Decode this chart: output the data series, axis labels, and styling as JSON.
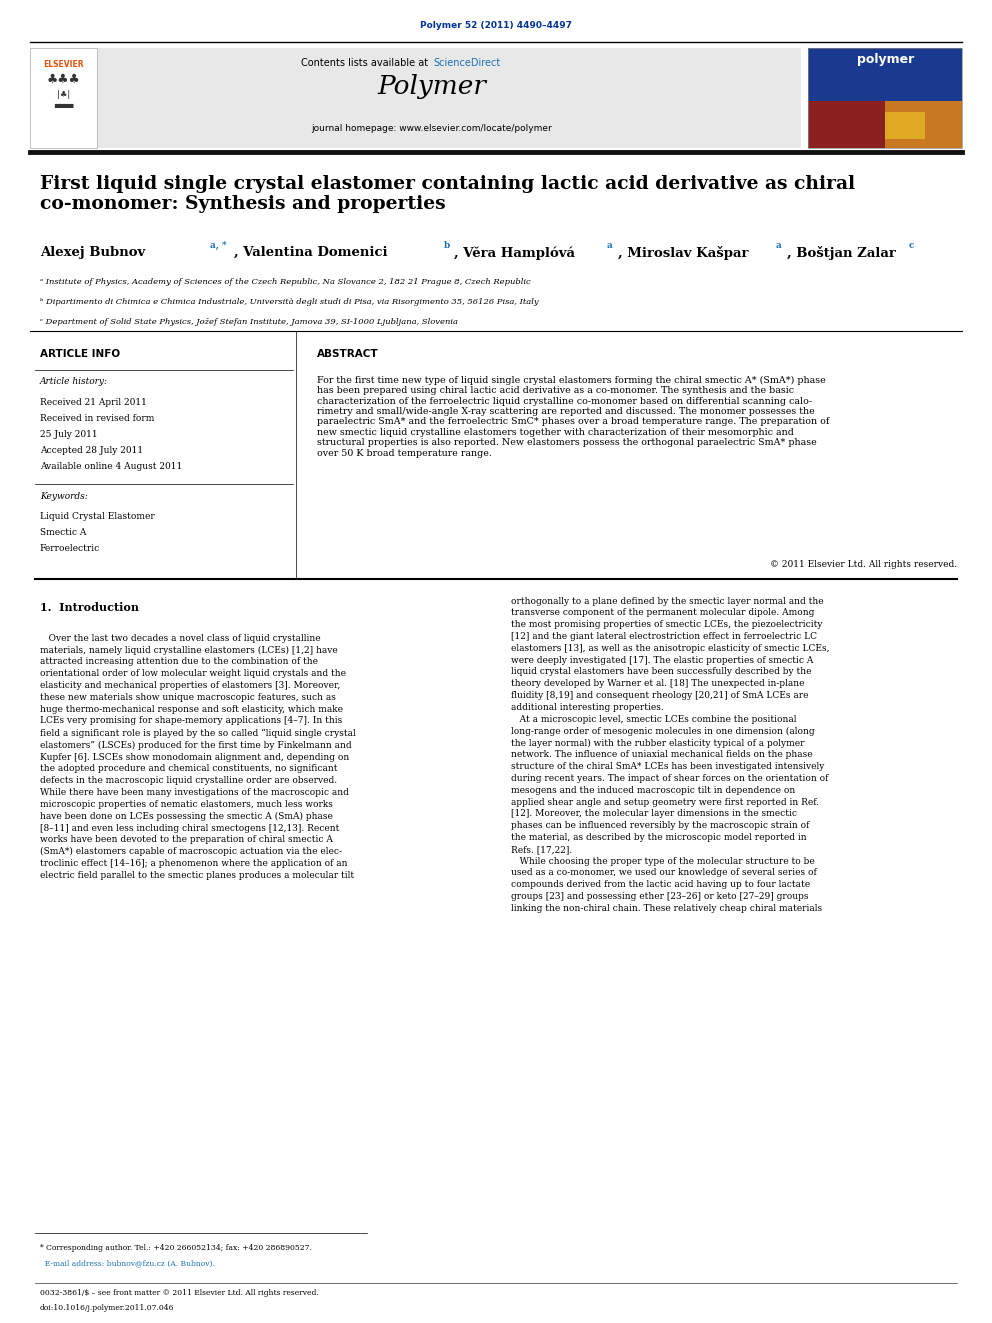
{
  "page_width": 9.92,
  "page_height": 13.23,
  "background_color": "#ffffff",
  "journal_ref": "Polymer 52 (2011) 4490–4497",
  "journal_ref_color": "#003399",
  "header_bg": "#e8e8e8",
  "header_text": "Contents lists available at ",
  "header_journal": "Polymer",
  "header_url": "journal homepage: www.elsevier.com/locate/polymer",
  "sciencedirect_color": "#1a6fb5",
  "title": "First liquid single crystal elastomer containing lactic acid derivative as chiral\nco-monomer: Synthesis and properties",
  "affil_a": "ᵃ Institute of Physics, Academy of Sciences of the Czech Republic, Na Slovance 2, 182 21 Prague 8, Czech Republic",
  "affil_b": "ᵇ Dipartimento di Chimica e Chimica Industriale, Università degli studi di Pisa, via Risorgimento 35, 56126 Pisa, Italy",
  "affil_c": "ᶜ Department of Solid State Physics, Jožef Stefan Institute, Jamova 39, SI-1000 Ljubljana, Slovenia",
  "article_info_title": "ARTICLE INFO",
  "abstract_title": "ABSTRACT",
  "article_history_label": "Article history:",
  "received": "Received 21 April 2011",
  "revised": "Received in revised form",
  "revised2": "25 July 2011",
  "accepted": "Accepted 28 July 2011",
  "online": "Available online 4 August 2011",
  "keywords_label": "Keywords:",
  "keyword1": "Liquid Crystal Elastomer",
  "keyword2": "Smectic A",
  "keyword3": "Ferroelectric",
  "abstract_text": "For the first time new type of liquid single crystal elastomers forming the chiral smectic A* (SmA*) phase\nhas been prepared using chiral lactic acid derivative as a co-monomer. The synthesis and the basic\ncharacterization of the ferroelectric liquid crystalline co-monomer based on differential scanning calo-\nrimetry and small/wide-angle X-ray scattering are reported and discussed. The monomer possesses the\nparaelectric SmA* and the ferroelectric SmC* phases over a broad temperature range. The preparation of\nnew smectic liquid crystalline elastomers together with characterization of their mesomorphic and\nstructural properties is also reported. New elastomers possess the orthogonal paraelectric SmA* phase\nover 50 K broad temperature range.",
  "copyright": "© 2011 Elsevier Ltd. All rights reserved.",
  "intro_title": "1.  Introduction",
  "intro_text_left": "   Over the last two decades a novel class of liquid crystalline\nmaterials, namely liquid crystalline elastomers (LCEs) [1,2] have\nattracted increasing attention due to the combination of the\norientational order of low molecular weight liquid crystals and the\nelasticity and mechanical properties of elastomers [3]. Moreover,\nthese new materials show unique macroscopic features, such as\nhuge thermo-mechanical response and soft elasticity, which make\nLCEs very promising for shape-memory applications [4–7]. In this\nfield a significant role is played by the so called “liquid single crystal\nelastomers” (LSCEs) produced for the first time by Finkelmann and\nKupfer [6]. LSCEs show monodomain alignment and, depending on\nthe adopted procedure and chemical constituents, no significant\ndefects in the macroscopic liquid crystalline order are observed.\nWhile there have been many investigations of the macroscopic and\nmicroscopic properties of nematic elastomers, much less works\nhave been done on LCEs possessing the smectic A (SmA) phase\n[8–11] and even less including chiral smectogens [12,13]. Recent\nworks have been devoted to the preparation of chiral smectic A\n(SmA*) elastomers capable of macroscopic actuation via the elec-\ntroclinic effect [14–16]; a phenomenon where the application of an\nelectric field parallel to the smectic planes produces a molecular tilt",
  "intro_text_right": "orthogonally to a plane defined by the smectic layer normal and the\ntransverse component of the permanent molecular dipole. Among\nthe most promising properties of smectic LCEs, the piezoelectricity\n[12] and the giant lateral electrostriction effect in ferroelectric LC\nelastomers [13], as well as the anisotropic elasticity of smectic LCEs,\nwere deeply investigated [17]. The elastic properties of smectic A\nliquid crystal elastomers have been successfully described by the\ntheory developed by Warner et al. [18] The unexpected in-plane\nfluidity [8,19] and consequent rheology [20,21] of SmA LCEs are\nadditional interesting properties.\n   At a microscopic level, smectic LCEs combine the positional\nlong-range order of mesogenic molecules in one dimension (along\nthe layer normal) with the rubber elasticity typical of a polymer\nnetwork. The influence of uniaxial mechanical fields on the phase\nstructure of the chiral SmA* LCEs has been investigated intensively\nduring recent years. The impact of shear forces on the orientation of\nmesogens and the induced macroscopic tilt in dependence on\napplied shear angle and setup geometry were first reported in Ref.\n[12]. Moreover, the molecular layer dimensions in the smectic\nphases can be influenced reversibly by the macroscopic strain of\nthe material, as described by the microscopic model reported in\nRefs. [17,22].\n   While choosing the proper type of the molecular structure to be\nused as a co-monomer, we used our knowledge of several series of\ncompounds derived from the lactic acid having up to four lactate\ngroups [23] and possessing ether [23–26] or keto [27–29] groups\nlinking the non-chiral chain. These relatively cheap chiral materials",
  "footnote1": "* Corresponding author. Tel.: +420 266052134; fax: +420 286890527.",
  "footnote2": "  E-mail address: bubnov@fzu.cz (A. Bubnov).",
  "footnote3": "0032-3861/$ – see front matter © 2011 Elsevier Ltd. All rights reserved.",
  "footnote4": "doi:10.1016/j.polymer.2011.07.046",
  "link_color": "#1a6fb5"
}
